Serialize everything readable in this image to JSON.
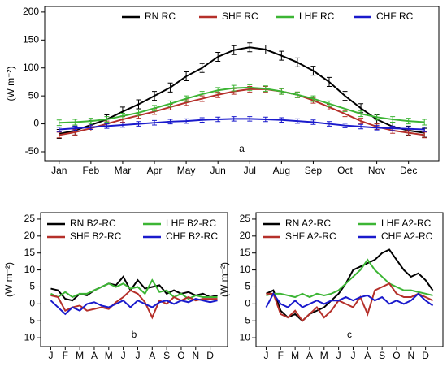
{
  "chart_data": [
    {
      "type": "line",
      "ylabel": "(W m⁻²)",
      "annotation": "a",
      "legend": "top",
      "categories": [
        "Jan",
        null,
        "Feb",
        null,
        "Mar",
        null,
        "Apr",
        null,
        "May",
        null,
        "Jun",
        null,
        "Jul",
        null,
        "Aug",
        null,
        "Sep",
        null,
        "Oct",
        null,
        "Nov",
        null,
        "Dec",
        null
      ],
      "ylim": [
        -66,
        210
      ],
      "yticks": [
        -50,
        0,
        50,
        100,
        150,
        200
      ],
      "series": [
        {
          "name": "RN RC",
          "color": "#000000",
          "error": 8,
          "values": [
            -18,
            -12,
            -2,
            8,
            22,
            35,
            50,
            65,
            85,
            100,
            120,
            132,
            137,
            133,
            122,
            110,
            95,
            75,
            50,
            28,
            8,
            -5,
            -12,
            -16
          ]
        },
        {
          "name": "SHF RC",
          "color": "#b5302a",
          "error": 5,
          "values": [
            -20,
            -15,
            -8,
            0,
            8,
            15,
            22,
            30,
            38,
            45,
            52,
            58,
            62,
            62,
            58,
            52,
            42,
            30,
            18,
            5,
            -5,
            -12,
            -16,
            -20
          ]
        },
        {
          "name": "LHF RC",
          "color": "#3cb534",
          "error": 5,
          "values": [
            2,
            3,
            5,
            8,
            14,
            20,
            28,
            36,
            45,
            53,
            60,
            64,
            65,
            63,
            58,
            52,
            45,
            36,
            27,
            18,
            12,
            8,
            5,
            3
          ]
        },
        {
          "name": "CHF RC",
          "color": "#1a1acc",
          "error": 4,
          "values": [
            -10,
            -8,
            -6,
            -4,
            -2,
            0,
            2,
            4,
            5,
            7,
            8,
            9,
            9,
            8,
            7,
            5,
            3,
            0,
            -3,
            -5,
            -7,
            -8,
            -9,
            -10
          ]
        }
      ]
    },
    {
      "type": "line",
      "ylabel": "(W m⁻²)",
      "annotation": "b",
      "legend": "top",
      "categories": [
        "J",
        null,
        "F",
        null,
        "M",
        null,
        "A",
        null,
        "M",
        null,
        "J",
        null,
        "J",
        null,
        "A",
        null,
        "S",
        null,
        "O",
        null,
        "N",
        null,
        "D",
        null
      ],
      "ylim": [
        -12.6,
        26.9
      ],
      "yticks": [
        -10,
        -5,
        0,
        5,
        10,
        15,
        20,
        25
      ],
      "series": [
        {
          "name": "RN B2-RC",
          "color": "#000000",
          "values": [
            4.5,
            4,
            1.5,
            1,
            3,
            2.5,
            4,
            5,
            6,
            5.5,
            8,
            4,
            7,
            4.5,
            5,
            5.5,
            3,
            4,
            3,
            3.5,
            2.5,
            3,
            2,
            2.5
          ]
        },
        {
          "name": "LHF B2-RC",
          "color": "#3cb534",
          "values": [
            3,
            2,
            3.5,
            2,
            3,
            3,
            4,
            5,
            6,
            5,
            6,
            4.5,
            5,
            3,
            7,
            3.5,
            4,
            2,
            3,
            1.5,
            2.5,
            2,
            2,
            2
          ]
        },
        {
          "name": "SHF B2-RC",
          "color": "#b5302a",
          "values": [
            2.5,
            2,
            -2,
            -1,
            -0.5,
            -2,
            -1.5,
            -1,
            -1.5,
            0.5,
            2,
            4,
            3,
            0.5,
            -4,
            1,
            0,
            2,
            1,
            2,
            1,
            1.5,
            1.5,
            1.5
          ]
        },
        {
          "name": "CHF B2-RC",
          "color": "#1a1acc",
          "values": [
            1,
            -1,
            -3,
            -1,
            -2,
            0,
            0.5,
            -0.5,
            -1,
            0,
            1,
            -1,
            1,
            0,
            -1,
            0.5,
            1,
            0,
            1,
            0.5,
            1.5,
            1,
            0.5,
            1
          ]
        }
      ]
    },
    {
      "type": "line",
      "ylabel": "(W m⁻²)",
      "annotation": "c",
      "legend": "top",
      "categories": [
        "J",
        null,
        "F",
        null,
        "M",
        null,
        "A",
        null,
        "M",
        null,
        "J",
        null,
        "J",
        null,
        "A",
        null,
        "S",
        null,
        "O",
        null,
        "N",
        null,
        "D",
        null
      ],
      "ylim": [
        -12.6,
        26.9
      ],
      "yticks": [
        -10,
        -5,
        0,
        5,
        10,
        15,
        20,
        25
      ],
      "series": [
        {
          "name": "RN A2-RC",
          "color": "#000000",
          "values": [
            3,
            4,
            -2,
            -4,
            -3,
            -5,
            -3,
            -2,
            -1,
            1,
            3,
            6,
            10,
            11,
            12,
            13,
            15,
            16,
            13,
            10,
            8,
            9,
            7,
            4
          ]
        },
        {
          "name": "LHF A2-RC",
          "color": "#3cb534",
          "values": [
            2.5,
            3,
            3,
            2.5,
            2,
            3,
            2,
            3,
            2.5,
            3,
            4,
            6,
            8,
            10,
            13,
            10,
            8,
            6,
            5,
            4,
            4,
            3.5,
            3,
            2.5
          ]
        },
        {
          "name": "SHF A2-RC",
          "color": "#b5302a",
          "values": [
            3,
            3,
            -3,
            -4,
            -2,
            -5,
            -3,
            -1,
            -4,
            -2,
            1,
            0,
            -1,
            2,
            -3,
            4,
            5,
            6,
            3,
            2,
            2,
            3,
            2,
            1
          ]
        },
        {
          "name": "CHF A2-RC",
          "color": "#1a1acc",
          "values": [
            -1,
            3,
            0,
            -1,
            1,
            -1,
            0,
            1,
            0,
            1,
            1,
            2,
            1,
            2,
            2.5,
            1,
            2,
            0,
            1,
            0,
            1,
            3,
            1,
            -0.5
          ]
        }
      ]
    }
  ]
}
